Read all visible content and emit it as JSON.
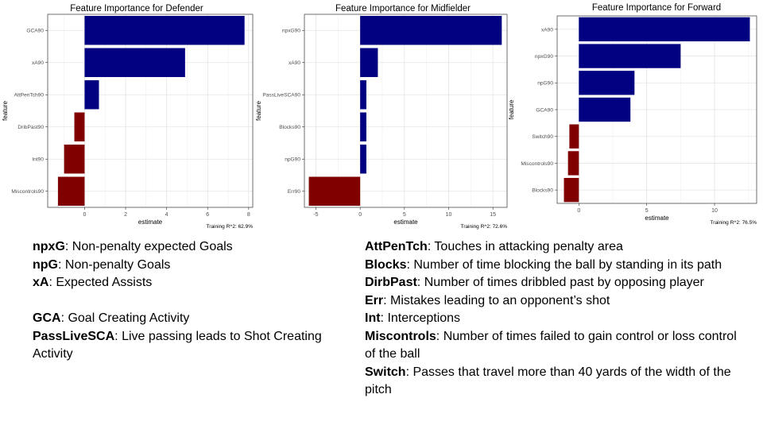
{
  "chart_data": [
    {
      "type": "bar",
      "orientation": "horizontal",
      "title": "Feature Importance for Defender",
      "xlabel": "estimate",
      "ylabel": "feature",
      "caption": "Training R^2: 62.9%",
      "categories": [
        "GCA90",
        "xA90",
        "AttPenTch90",
        "DribPast90",
        "Int90",
        "Miscontrols90"
      ],
      "values": [
        7.8,
        4.9,
        0.7,
        -0.5,
        -1.0,
        -1.3
      ],
      "xlim": [
        -1.8,
        8.2
      ],
      "xticks": [
        0,
        2,
        4,
        6,
        8
      ],
      "xtick_labels": [
        "0",
        "2",
        "4",
        "6",
        "8"
      ],
      "grid": true,
      "positive_color": "#000080",
      "negative_color": "#800000"
    },
    {
      "type": "bar",
      "orientation": "horizontal",
      "title": "Feature Importance for Midfielder",
      "xlabel": "estimate",
      "ylabel": "feature",
      "caption": "Training R^2: 72.6%",
      "categories": [
        "npxG90",
        "xA90",
        "PassLiveSCA90",
        "Blocks90",
        "npG90",
        "Err90"
      ],
      "values": [
        16.0,
        2.0,
        0.7,
        0.7,
        0.7,
        -5.8
      ],
      "xlim": [
        -6.3,
        16.6
      ],
      "xticks": [
        -5,
        0,
        5,
        10,
        15
      ],
      "xtick_labels": [
        "-5",
        "0",
        "5",
        "10",
        "15"
      ],
      "grid": true,
      "positive_color": "#000080",
      "negative_color": "#800000"
    },
    {
      "type": "bar",
      "orientation": "horizontal",
      "title": "Feature Importance for Forward",
      "xlabel": "estimate",
      "ylabel": "feature",
      "caption": "Training R^2: 76.5%",
      "categories": [
        "xA90",
        "npxG90",
        "npG90",
        "GCA90",
        "Switch90",
        "Miscontrols90",
        "Blocks90"
      ],
      "values": [
        12.6,
        7.5,
        4.1,
        3.8,
        -0.7,
        -0.8,
        -1.1
      ],
      "xlim": [
        -1.6,
        13.1
      ],
      "xticks": [
        0,
        5,
        10
      ],
      "xtick_labels": [
        "0",
        "5",
        "10"
      ],
      "grid": true,
      "positive_color": "#000080",
      "negative_color": "#800000"
    }
  ],
  "definitions_left": [
    {
      "term": "npxG",
      "text": ": Non-penalty expected Goals"
    },
    {
      "term": "npG",
      "text": ": Non-penalty Goals"
    },
    {
      "term": "xA",
      "text": ": Expected Assists"
    },
    {
      "gap": true
    },
    {
      "term": "GCA",
      "text": ": Goal Creating Activity"
    },
    {
      "term": "PassLiveSCA",
      "text": ": Live passing leads to Shot Creating"
    },
    {
      "term": "",
      "text": "Activity"
    }
  ],
  "definitions_right": [
    {
      "term": "AttPenTch",
      "text": ": Touches in attacking penalty area"
    },
    {
      "term": "Blocks",
      "text": ": Number of time blocking the ball by standing in its path"
    },
    {
      "term": "DirbPast",
      "text": ": Number of times dribbled past by opposing player"
    },
    {
      "term": "Err",
      "text": ": Mistakes leading to an opponent’s shot"
    },
    {
      "term": "Int",
      "text": ": Interceptions"
    },
    {
      "term": "Miscontrols",
      "text": ": Number of times failed to gain control or loss control"
    },
    {
      "term": "",
      "text": "of the ball"
    },
    {
      "term": "Switch",
      "text": ": Passes that travel more than 40 yards of the width of the"
    },
    {
      "term": "",
      "text": "pitch"
    }
  ]
}
